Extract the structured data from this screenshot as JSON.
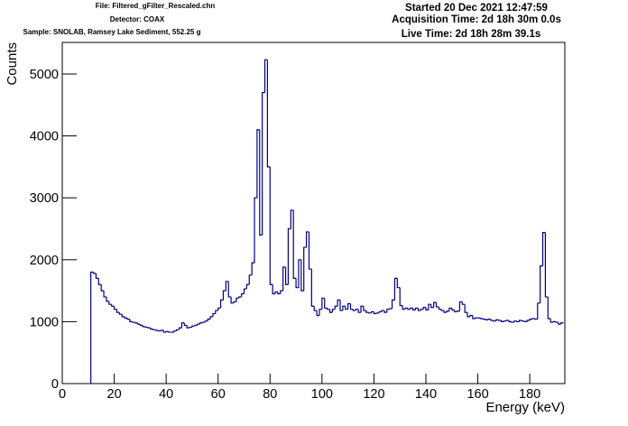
{
  "chart_data": {
    "type": "histogram",
    "header_left": [
      "File: Filtered_gFilter_Rescaled.chn",
      "Detector: COAX",
      "Sample: SNOLAB, Ramsey Lake Sediment, 552.25 g"
    ],
    "header_right": [
      "Started 20 Dec 2021 12:47:59",
      "Acquisition Time: 2d 18h 30m 0.0s",
      "Live Time: 2d 18h 28m 39.1s"
    ],
    "x_label": "Energy (keV)",
    "y_label": "Counts",
    "color": "#000080",
    "xlim": [
      0,
      193.5
    ],
    "ylim": [
      0,
      5510
    ],
    "xticks": [
      0,
      20,
      40,
      60,
      80,
      100,
      120,
      140,
      160,
      180
    ],
    "yticks": [
      0,
      1000,
      2000,
      3000,
      4000,
      5000
    ],
    "bins": [
      11,
      12,
      13,
      14,
      15,
      16,
      17,
      18,
      19,
      20,
      21,
      22,
      23,
      24,
      25,
      26,
      27,
      28,
      29,
      30,
      31,
      32,
      33,
      34,
      35,
      36,
      37,
      38,
      39,
      40,
      41,
      42,
      43,
      44,
      45,
      46,
      47,
      48,
      49,
      50,
      51,
      52,
      53,
      54,
      55,
      56,
      57,
      58,
      59,
      60,
      61,
      62,
      63,
      64,
      65,
      66,
      67,
      68,
      69,
      70,
      71,
      72,
      73,
      74,
      75,
      76,
      77,
      78,
      79,
      80,
      81,
      82,
      83,
      84,
      85,
      86,
      87,
      88,
      89,
      90,
      91,
      92,
      93,
      94,
      95,
      96,
      97,
      98,
      99,
      100,
      101,
      102,
      103,
      104,
      105,
      106,
      107,
      108,
      109,
      110,
      111,
      112,
      113,
      114,
      115,
      116,
      117,
      118,
      119,
      120,
      121,
      122,
      123,
      124,
      125,
      126,
      127,
      128,
      129,
      130,
      131,
      132,
      133,
      134,
      135,
      136,
      137,
      138,
      139,
      140,
      141,
      142,
      143,
      144,
      145,
      146,
      147,
      148,
      149,
      150,
      151,
      152,
      153,
      154,
      155,
      156,
      157,
      158,
      159,
      160,
      161,
      162,
      163,
      164,
      165,
      166,
      167,
      168,
      169,
      170,
      171,
      172,
      173,
      174,
      175,
      176,
      177,
      178,
      179,
      180,
      181,
      182,
      183,
      184,
      185,
      186,
      187,
      188,
      189,
      190,
      191,
      192,
      193
    ],
    "counts": [
      1800,
      1780,
      1700,
      1600,
      1500,
      1400,
      1330,
      1280,
      1250,
      1200,
      1150,
      1120,
      1080,
      1060,
      1040,
      1000,
      990,
      980,
      960,
      940,
      920,
      910,
      900,
      880,
      870,
      860,
      850,
      860,
      830,
      840,
      830,
      830,
      850,
      870,
      900,
      980,
      940,
      900,
      910,
      930,
      940,
      960,
      980,
      990,
      1010,
      1040,
      1080,
      1130,
      1180,
      1220,
      1350,
      1500,
      1650,
      1400,
      1300,
      1320,
      1380,
      1400,
      1450,
      1530,
      1600,
      1750,
      1950,
      3000,
      4100,
      2400,
      4700,
      5230,
      3500,
      1600,
      1450,
      1480,
      1450,
      1500,
      1880,
      1600,
      2500,
      2800,
      1700,
      1550,
      2000,
      1500,
      2200,
      2450,
      1850,
      1250,
      1180,
      1100,
      1200,
      1380,
      1220,
      1200,
      1150,
      1200,
      1250,
      1350,
      1180,
      1250,
      1200,
      1290,
      1200,
      1180,
      1200,
      1150,
      1250,
      1180,
      1150,
      1140,
      1160,
      1130,
      1140,
      1160,
      1180,
      1150,
      1200,
      1210,
      1350,
      1700,
      1550,
      1260,
      1200,
      1220,
      1200,
      1220,
      1190,
      1220,
      1180,
      1200,
      1230,
      1190,
      1280,
      1230,
      1310,
      1240,
      1200,
      1180,
      1150,
      1170,
      1220,
      1190,
      1160,
      1170,
      1320,
      1280,
      1150,
      1080,
      1100,
      1050,
      1060,
      1060,
      1050,
      1040,
      1030,
      1040,
      1020,
      1010,
      1030,
      1020,
      1000,
      1010,
      1020,
      1000,
      990,
      1010,
      1000,
      1020,
      1010,
      1000,
      1020,
      1040,
      1050,
      1040,
      1300,
      1900,
      2440,
      1400,
      1050,
      990,
      1000,
      990,
      960,
      980
    ]
  }
}
